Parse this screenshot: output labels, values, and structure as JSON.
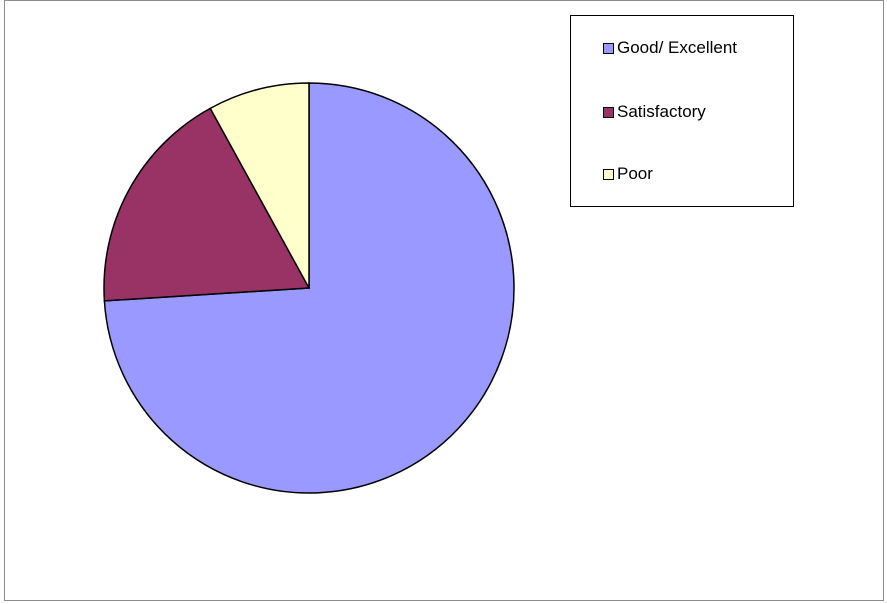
{
  "chart_data": {
    "type": "pie",
    "title": "",
    "categories": [
      "Good/ Excellent",
      "Satisfactory",
      "Poor"
    ],
    "values": [
      74,
      18,
      8
    ],
    "colors": [
      "#9999ff",
      "#993366",
      "#ffffcc"
    ],
    "legend_position": "top-right"
  }
}
